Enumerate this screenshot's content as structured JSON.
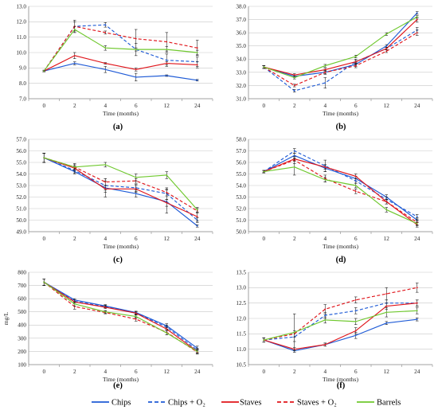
{
  "legend": {
    "placement": "bottom",
    "entries": [
      {
        "label": "Chips",
        "color": "#1f5bd6",
        "dash": false
      },
      {
        "label": "Chips + O₂",
        "color": "#1f5bd6",
        "dash": true
      },
      {
        "label": "Staves",
        "color": "#e0141a",
        "dash": false
      },
      {
        "label": "Staves + O₂",
        "color": "#e0141a",
        "dash": true
      },
      {
        "label": "Barrels",
        "color": "#6fc82e",
        "dash": false
      }
    ]
  },
  "chart_data": [
    {
      "type": "line",
      "panel": "(a)",
      "xlabel": "Time (months)",
      "ylabel": "",
      "categories": [
        "0",
        "2",
        "4",
        "6",
        "12",
        "24"
      ],
      "ylim": [
        7.0,
        13.0
      ],
      "yticks": [
        "7.0",
        "8.0",
        "9.0",
        "10.0",
        "11.0",
        "12.0",
        "13.0"
      ],
      "grid": true,
      "series": [
        {
          "key": "chips",
          "values": [
            8.8,
            9.3,
            8.9,
            8.4,
            8.5,
            8.2
          ],
          "errors": [
            0.05,
            0.1,
            0.2,
            0.25,
            0.05,
            0.05
          ]
        },
        {
          "key": "chips_o2",
          "values": [
            8.8,
            11.7,
            11.8,
            10.2,
            9.5,
            9.4
          ],
          "errors": [
            0.05,
            0.3,
            0.15,
            0.4,
            0.4,
            0.3
          ]
        },
        {
          "key": "staves",
          "values": [
            8.8,
            9.8,
            9.3,
            8.9,
            9.3,
            9.2
          ],
          "errors": [
            0.05,
            0.2,
            0.05,
            0.1,
            0.1,
            0.2
          ]
        },
        {
          "key": "staves_o2",
          "values": [
            8.8,
            11.7,
            11.3,
            10.9,
            10.7,
            10.3
          ],
          "errors": [
            0.05,
            0.4,
            0.1,
            0.6,
            0.6,
            0.5
          ]
        },
        {
          "key": "barrels",
          "values": [
            8.8,
            11.5,
            10.3,
            10.2,
            10.2,
            10.0
          ],
          "errors": [
            0.05,
            0.2,
            0.15,
            0.1,
            0.2,
            0.15
          ]
        }
      ]
    },
    {
      "type": "line",
      "panel": "(b)",
      "xlabel": "Time (months)",
      "ylabel": "",
      "categories": [
        "0",
        "2",
        "4",
        "6",
        "12",
        "24"
      ],
      "ylim": [
        31.0,
        38.0
      ],
      "yticks": [
        "31.0",
        "32.0",
        "33.0",
        "34.0",
        "35.0",
        "36.0",
        "37.0",
        "38.0"
      ],
      "grid": true,
      "series": [
        {
          "key": "chips",
          "values": [
            33.4,
            32.7,
            33.0,
            33.6,
            35.0,
            37.5
          ],
          "errors": [
            0.1,
            0.1,
            0.1,
            0.15,
            0.1,
            0.1
          ]
        },
        {
          "key": "chips_o2",
          "values": [
            33.4,
            31.6,
            32.2,
            33.8,
            34.8,
            36.2
          ],
          "errors": [
            0.1,
            0.1,
            0.4,
            0.2,
            0.1,
            0.2
          ]
        },
        {
          "key": "staves",
          "values": [
            33.4,
            32.8,
            33.2,
            33.8,
            34.8,
            37.0
          ],
          "errors": [
            0.1,
            0.1,
            0.1,
            0.1,
            0.1,
            0.2
          ]
        },
        {
          "key": "staves_o2",
          "values": [
            33.4,
            32.0,
            33.0,
            33.5,
            34.6,
            36.0
          ],
          "errors": [
            0.1,
            0.1,
            0.15,
            0.15,
            0.1,
            0.2
          ]
        },
        {
          "key": "barrels",
          "values": [
            33.4,
            32.6,
            33.5,
            34.2,
            35.9,
            37.2
          ],
          "errors": [
            0.1,
            0.1,
            0.1,
            0.1,
            0.1,
            0.1
          ]
        }
      ]
    },
    {
      "type": "line",
      "panel": "(c)",
      "xlabel": "Time (months)",
      "ylabel": "",
      "categories": [
        "0",
        "2",
        "4",
        "6",
        "12",
        "24"
      ],
      "ylim": [
        49.0,
        57.0
      ],
      "yticks": [
        "49.0",
        "50.0",
        "51.0",
        "52.0",
        "53.0",
        "54.0",
        "55.0",
        "56.0",
        "57.0"
      ],
      "grid": true,
      "series": [
        {
          "key": "chips",
          "values": [
            55.4,
            54.2,
            52.8,
            52.3,
            51.6,
            49.5
          ],
          "errors": [
            0.4,
            0.2,
            0.8,
            0.3,
            1.0,
            0.1
          ]
        },
        {
          "key": "chips_o2",
          "values": [
            55.4,
            54.3,
            53.0,
            52.8,
            52.3,
            50.0
          ],
          "errors": [
            0.4,
            0.2,
            0.4,
            0.3,
            0.5,
            0.2
          ]
        },
        {
          "key": "staves",
          "values": [
            55.4,
            54.5,
            52.7,
            52.7,
            51.5,
            50.3
          ],
          "errors": [
            0.4,
            0.2,
            0.3,
            0.3,
            0.3,
            0.4
          ]
        },
        {
          "key": "staves_o2",
          "values": [
            55.4,
            54.6,
            53.3,
            53.4,
            52.4,
            50.8
          ],
          "errors": [
            0.4,
            0.3,
            0.3,
            0.2,
            0.3,
            0.2
          ]
        },
        {
          "key": "barrels",
          "values": [
            55.4,
            54.6,
            54.8,
            53.7,
            53.9,
            50.9
          ],
          "errors": [
            0.4,
            0.2,
            0.2,
            0.3,
            0.3,
            0.2
          ]
        }
      ]
    },
    {
      "type": "line",
      "panel": "(d)",
      "xlabel": "Time (months)",
      "ylabel": "",
      "categories": [
        "0",
        "2",
        "4",
        "6",
        "12",
        "24"
      ],
      "ylim": [
        50.0,
        58.0
      ],
      "yticks": [
        "50.0",
        "51.0",
        "52.0",
        "53.0",
        "54.0",
        "55.0",
        "56.0",
        "57.0",
        "58.0"
      ],
      "grid": true,
      "series": [
        {
          "key": "chips",
          "values": [
            55.2,
            56.6,
            55.5,
            54.6,
            53.0,
            51.0
          ],
          "errors": [
            0.1,
            0.2,
            0.3,
            0.2,
            0.2,
            0.2
          ]
        },
        {
          "key": "chips_o2",
          "values": [
            55.2,
            57.0,
            55.7,
            54.4,
            52.8,
            51.3
          ],
          "errors": [
            0.1,
            0.2,
            0.5,
            0.2,
            0.2,
            0.2
          ]
        },
        {
          "key": "staves",
          "values": [
            55.2,
            56.3,
            55.6,
            54.8,
            52.6,
            50.6
          ],
          "errors": [
            0.1,
            0.2,
            0.2,
            0.2,
            0.2,
            0.2
          ]
        },
        {
          "key": "staves_o2",
          "values": [
            55.2,
            56.2,
            54.6,
            53.5,
            52.6,
            50.8
          ],
          "errors": [
            0.1,
            0.3,
            0.3,
            0.2,
            0.2,
            0.2
          ]
        },
        {
          "key": "barrels",
          "values": [
            55.2,
            55.6,
            54.5,
            54.0,
            51.9,
            50.7
          ],
          "errors": [
            0.1,
            0.7,
            0.2,
            0.2,
            0.2,
            0.2
          ]
        }
      ]
    },
    {
      "type": "line",
      "panel": "(e)",
      "xlabel": "Time (months)",
      "ylabel": "mg/L",
      "categories": [
        "0",
        "2",
        "4",
        "6",
        "12",
        "24"
      ],
      "ylim": [
        100,
        800
      ],
      "yticks": [
        "100",
        "200",
        "300",
        "400",
        "500",
        "600",
        "700",
        "800"
      ],
      "grid": true,
      "series": [
        {
          "key": "chips",
          "values": [
            725,
            590,
            545,
            495,
            395,
            225
          ],
          "errors": [
            25,
            10,
            10,
            10,
            15,
            15
          ]
        },
        {
          "key": "chips_o2",
          "values": [
            725,
            580,
            540,
            490,
            385,
            210
          ],
          "errors": [
            25,
            10,
            10,
            10,
            15,
            15
          ]
        },
        {
          "key": "staves",
          "values": [
            725,
            575,
            535,
            490,
            370,
            200
          ],
          "errors": [
            25,
            15,
            10,
            10,
            15,
            15
          ]
        },
        {
          "key": "staves_o2",
          "values": [
            725,
            540,
            495,
            445,
            345,
            195
          ],
          "errors": [
            25,
            20,
            10,
            15,
            20,
            15
          ]
        },
        {
          "key": "barrels",
          "values": [
            725,
            560,
            500,
            465,
            340,
            200
          ],
          "errors": [
            25,
            15,
            10,
            10,
            15,
            15
          ]
        }
      ]
    },
    {
      "type": "line",
      "panel": "(f)",
      "xlabel": "Time (months)",
      "ylabel": "",
      "categories": [
        "0",
        "2",
        "4",
        "6",
        "12",
        "24"
      ],
      "ylim": [
        10.5,
        13.5
      ],
      "yticks": [
        "10.5",
        "11.0",
        "11.5",
        "12.0",
        "12.5",
        "13.0",
        "13.5"
      ],
      "grid": true,
      "series": [
        {
          "key": "chips",
          "values": [
            11.3,
            10.95,
            11.15,
            11.45,
            11.85,
            11.97
          ],
          "errors": [
            0.07,
            0.05,
            0.05,
            0.1,
            0.05,
            0.05
          ]
        },
        {
          "key": "chips_o2",
          "values": [
            11.3,
            11.4,
            12.1,
            12.25,
            12.5,
            12.5
          ],
          "errors": [
            0.07,
            0.15,
            0.1,
            0.1,
            0.1,
            0.1
          ]
        },
        {
          "key": "staves",
          "values": [
            11.3,
            11.0,
            11.15,
            11.6,
            12.4,
            12.5
          ],
          "errors": [
            0.07,
            0.05,
            0.05,
            0.1,
            0.1,
            0.1
          ]
        },
        {
          "key": "staves_o2",
          "values": [
            11.3,
            11.5,
            12.3,
            12.6,
            12.8,
            13.0
          ],
          "errors": [
            0.07,
            0.1,
            0.15,
            0.1,
            0.2,
            0.15
          ]
        },
        {
          "key": "barrels",
          "values": [
            11.3,
            11.55,
            11.95,
            11.9,
            12.2,
            12.25
          ],
          "errors": [
            0.07,
            0.6,
            0.1,
            0.1,
            0.15,
            0.1
          ]
        }
      ]
    }
  ]
}
